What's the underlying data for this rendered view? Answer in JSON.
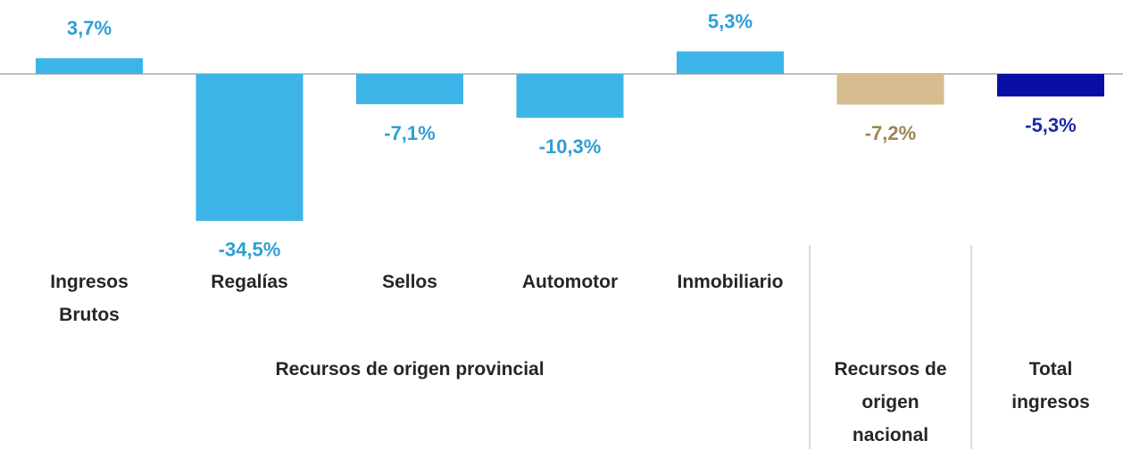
{
  "chart_data": {
    "type": "bar",
    "categories": [
      "Ingresos Brutos",
      "Regalías",
      "Sellos",
      "Automotor",
      "Inmobiliario",
      null,
      null
    ],
    "groups": [
      "Recursos de origen provincial",
      "Recursos de origen nacional",
      "Total ingresos"
    ],
    "values": [
      3.7,
      -34.5,
      -7.1,
      -10.3,
      5.3,
      -7.2,
      -5.3
    ],
    "value_labels": [
      "3,7%",
      "-34,5%",
      "-7,1%",
      "-10,3%",
      "5,3%",
      "-7,2%",
      "-5,3%"
    ],
    "colors": [
      "#3db4e7",
      "#3db4e7",
      "#3db4e7",
      "#3db4e7",
      "#3db4e7",
      "#d5bd8f",
      "#0a0fa3"
    ],
    "label_colors": [
      "#2f9fd3",
      "#2f9fd3",
      "#2f9fd3",
      "#2f9fd3",
      "#2f9fd3",
      "#9f8350",
      "#1a2aa8"
    ]
  }
}
